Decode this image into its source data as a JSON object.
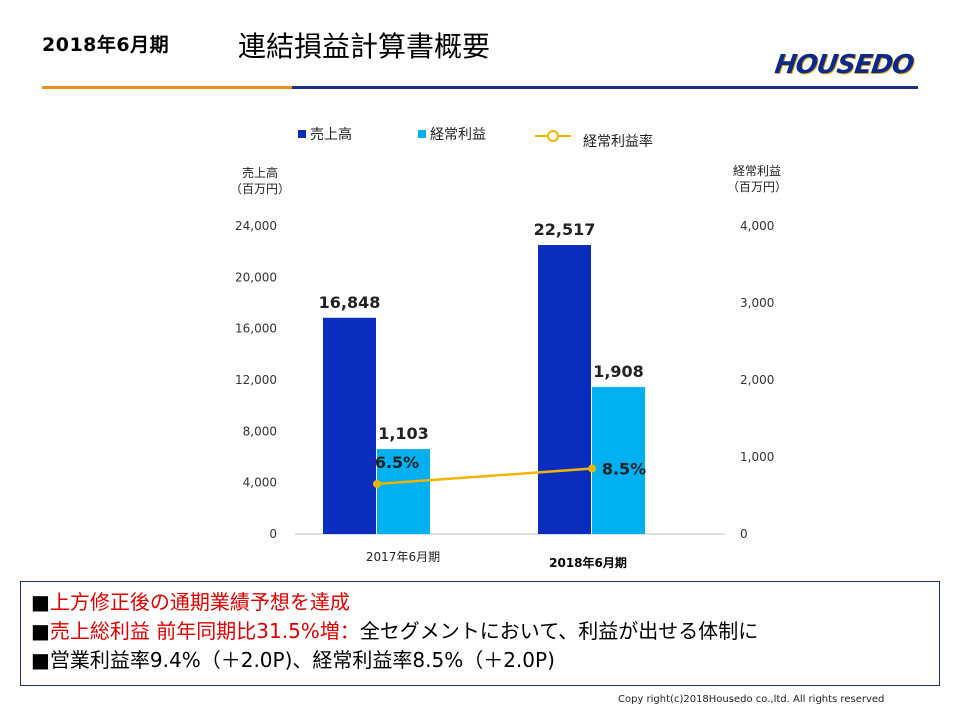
{
  "header": {
    "period": "2018年6月期",
    "title": "連結損益計算書概要",
    "logo": "HOUSEDO"
  },
  "colors": {
    "sales": "#0a2dbe",
    "ordinary_profit": "#00b0f0",
    "margin_line": "#f0b400",
    "accent_orange": "#e8901a",
    "accent_navy": "#1a2f8a",
    "highlight_red": "#e00000"
  },
  "legend": [
    {
      "label": "売上高",
      "marker": "square",
      "color": "#0a2dbe"
    },
    {
      "label": "経常利益",
      "marker": "square",
      "color": "#00b0f0"
    },
    {
      "label": "経常利益率",
      "marker": "line-circle",
      "color": "#f0b400"
    }
  ],
  "chart_data": {
    "type": "bar",
    "categories": [
      "2017年6月期",
      "2018年6月期"
    ],
    "series": [
      {
        "name": "売上高",
        "axis": "left",
        "values": [
          16848,
          22517
        ],
        "labels": [
          "16,848",
          "22,517"
        ]
      },
      {
        "name": "経常利益",
        "axis": "right",
        "values": [
          1103,
          1908
        ],
        "labels": [
          "1,103",
          "1,908"
        ]
      },
      {
        "name": "経常利益率",
        "type": "line",
        "values": [
          6.5,
          8.5
        ],
        "labels": [
          "6.5%",
          "8.5%"
        ]
      }
    ],
    "left_axis": {
      "title": [
        "売上高",
        "（百万円）"
      ],
      "ylim": [
        0,
        24000
      ],
      "ticks": [
        "0",
        "4,000",
        "8,000",
        "12,000",
        "16,000",
        "20,000",
        "24,000"
      ]
    },
    "right_axis": {
      "title": [
        "経常利益",
        "（百万円）"
      ],
      "ylim": [
        0,
        4000
      ],
      "ticks": [
        "0",
        "1,000",
        "2,000",
        "3,000",
        "4,000"
      ]
    },
    "grid": false,
    "legend_position": "top"
  },
  "notes": [
    {
      "bullet": "■",
      "red": "上方修正後の通期業績予想を達成",
      "rest": ""
    },
    {
      "bullet": "■",
      "red": "売上総利益 前年同期比31.5%増：",
      "rest": "全セグメントにおいて、利益が出せる体制に"
    },
    {
      "bullet": "■",
      "red": "",
      "rest": "営業利益率9.4%（＋2.0P)、経常利益率8.5%（＋2.0P)"
    }
  ],
  "footer": "Copy right(c)2018Housedo co.,ltd. All rights reserved"
}
